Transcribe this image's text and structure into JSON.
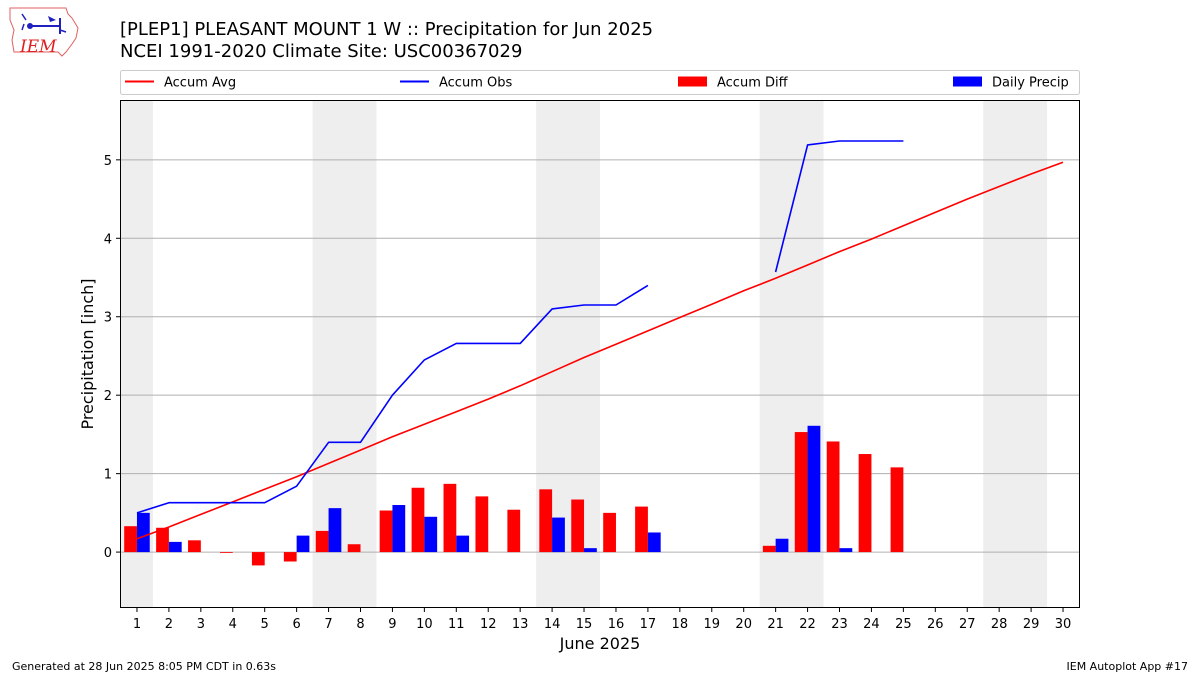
{
  "header": {
    "title_line1": "[PLEP1] PLEASANT MOUNT 1 W :: Precipitation for Jun 2025",
    "title_line2": "NCEI 1991-2020 Climate Site: USC00367029",
    "logo_text": "IEM"
  },
  "footer": {
    "generated": "Generated at 28 Jun 2025 8:05 PM CDT in 0.63s",
    "app": "IEM Autoplot App #17"
  },
  "colors": {
    "avg": "#ff0000",
    "obs": "#0000ff",
    "diff": "#ff0000",
    "daily": "#0000ff",
    "weekend_shade": "#eeeeee",
    "grid": "#b0b0b0"
  },
  "chart_data": {
    "type": "bar",
    "xlabel": "June 2025",
    "ylabel": "Precipitation [inch]",
    "xlim": [
      0.5,
      30.5
    ],
    "ylim": [
      -0.7,
      5.75
    ],
    "yticks": [
      0,
      1,
      2,
      3,
      4,
      5
    ],
    "grid": "horizontal",
    "legend_placement": "top, above plot",
    "legend": [
      {
        "label": "Accum Avg",
        "kind": "line",
        "color": "#ff0000"
      },
      {
        "label": "Accum Obs",
        "kind": "line",
        "color": "#0000ff"
      },
      {
        "label": "Accum Diff",
        "kind": "bar",
        "color": "#ff0000"
      },
      {
        "label": "Daily Precip",
        "kind": "bar",
        "color": "#0000ff"
      }
    ],
    "days": [
      1,
      2,
      3,
      4,
      5,
      6,
      7,
      8,
      9,
      10,
      11,
      12,
      13,
      14,
      15,
      16,
      17,
      18,
      19,
      20,
      21,
      22,
      23,
      24,
      25,
      26,
      27,
      28,
      29,
      30
    ],
    "shaded_day_ranges": [
      [
        0.5,
        1.5
      ],
      [
        6.5,
        8.5
      ],
      [
        13.5,
        15.5
      ],
      [
        20.5,
        22.5
      ],
      [
        27.5,
        29.5
      ]
    ],
    "series": [
      {
        "name": "Accum Avg",
        "kind": "line",
        "x": [
          1,
          2,
          3,
          4,
          5,
          6,
          7,
          8,
          9,
          10,
          11,
          12,
          13,
          14,
          15,
          16,
          17,
          18,
          19,
          20,
          21,
          22,
          23,
          24,
          25,
          26,
          27,
          28,
          29,
          30
        ],
        "values": [
          0.17,
          0.32,
          0.48,
          0.64,
          0.8,
          0.96,
          1.13,
          1.3,
          1.47,
          1.63,
          1.79,
          1.95,
          2.12,
          2.3,
          2.48,
          2.65,
          2.82,
          2.99,
          3.16,
          3.33,
          3.49,
          3.66,
          3.83,
          3.99,
          4.16,
          4.33,
          4.5,
          4.66,
          4.82,
          4.97
        ]
      },
      {
        "name": "Accum Obs",
        "kind": "line",
        "x": [
          1,
          2,
          3,
          4,
          5,
          6,
          7,
          8,
          9,
          10,
          11,
          12,
          13,
          14,
          15,
          16,
          17,
          18,
          19,
          20,
          21,
          22,
          23,
          24,
          25,
          26,
          27,
          28,
          29,
          30
        ],
        "values": [
          0.5,
          0.63,
          0.63,
          0.63,
          0.63,
          0.84,
          1.4,
          1.4,
          2.0,
          2.45,
          2.66,
          2.66,
          2.66,
          3.1,
          3.15,
          3.15,
          3.4,
          null,
          null,
          null,
          3.57,
          5.19,
          5.24,
          5.24,
          5.24,
          null,
          null,
          null,
          null,
          null
        ]
      },
      {
        "name": "Accum Diff",
        "kind": "bar",
        "x": [
          1,
          2,
          3,
          4,
          5,
          6,
          7,
          8,
          9,
          10,
          11,
          12,
          13,
          14,
          15,
          16,
          17,
          18,
          19,
          20,
          21,
          22,
          23,
          24,
          25,
          26,
          27,
          28,
          29,
          30
        ],
        "values": [
          0.33,
          0.31,
          0.15,
          -0.01,
          -0.17,
          -0.12,
          0.27,
          0.1,
          0.53,
          0.82,
          0.87,
          0.71,
          0.54,
          0.8,
          0.67,
          0.5,
          0.58,
          null,
          null,
          null,
          0.08,
          1.53,
          1.41,
          1.25,
          1.08,
          null,
          null,
          null,
          null,
          null
        ]
      },
      {
        "name": "Daily Precip",
        "kind": "bar",
        "x": [
          1,
          2,
          3,
          4,
          5,
          6,
          7,
          8,
          9,
          10,
          11,
          12,
          13,
          14,
          15,
          16,
          17,
          18,
          19,
          20,
          21,
          22,
          23,
          24,
          25,
          26,
          27,
          28,
          29,
          30
        ],
        "values": [
          0.5,
          0.13,
          0,
          0,
          0,
          0.21,
          0.56,
          0,
          0.6,
          0.45,
          0.21,
          0,
          0,
          0.44,
          0.05,
          0,
          0.25,
          null,
          null,
          null,
          0.17,
          1.61,
          0.05,
          0,
          0,
          null,
          null,
          null,
          null,
          null
        ]
      }
    ]
  }
}
